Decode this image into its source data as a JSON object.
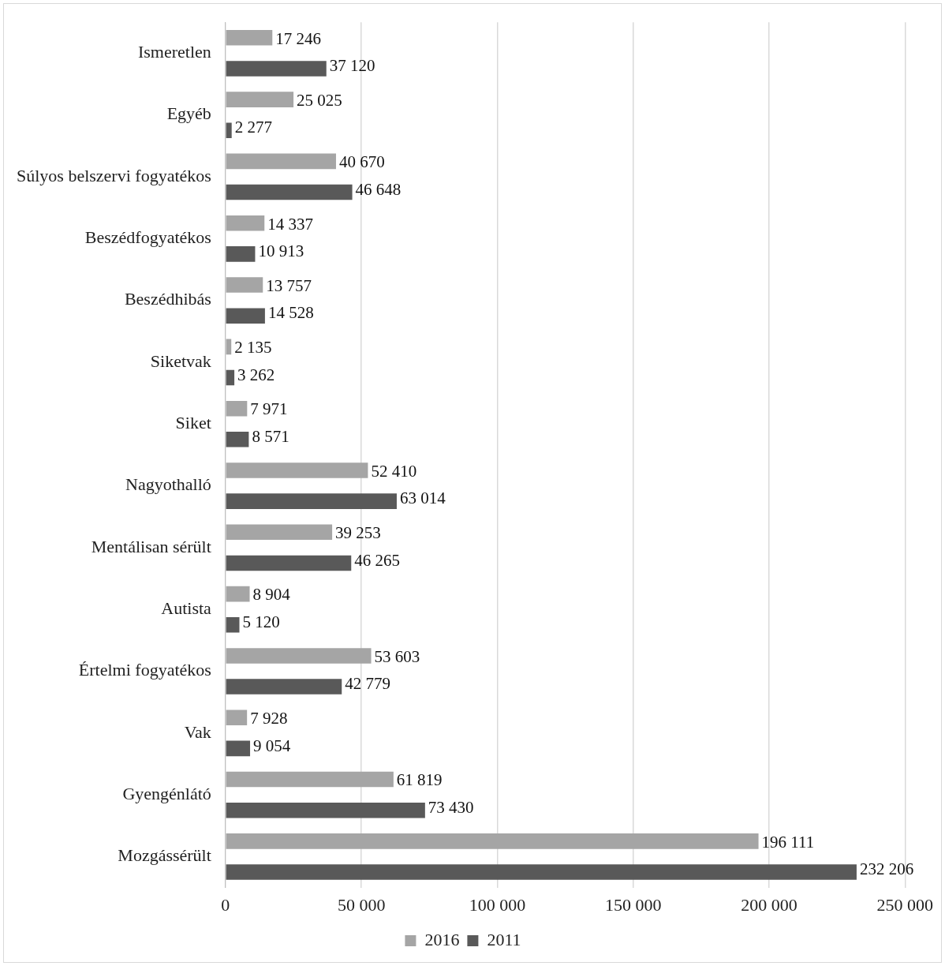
{
  "chart_data": {
    "type": "bar",
    "orientation": "horizontal",
    "categories": [
      "Ismeretlen",
      "Egyéb",
      "Súlyos belszervi fogyatékos",
      "Beszédfogyatékos",
      "Beszédhibás",
      "Siketvak",
      "Siket",
      "Nagyothalló",
      "Mentálisan sérült",
      "Autista",
      "Értelmi fogyatékos",
      "Vak",
      "Gyengénlátó",
      "Mozgássérült"
    ],
    "series": [
      {
        "name": "2016",
        "color": "#a5a5a5",
        "values": [
          17246,
          25025,
          40670,
          14337,
          13757,
          2135,
          7971,
          52410,
          39253,
          8904,
          53603,
          7928,
          61819,
          196111
        ],
        "value_labels": [
          "17 246",
          "25 025",
          "40 670",
          "14 337",
          "13 757",
          "2 135",
          "7 971",
          "52 410",
          "39 253",
          "8 904",
          "53 603",
          "7 928",
          "61 819",
          "196 111"
        ]
      },
      {
        "name": "2011",
        "color": "#595959",
        "values": [
          37120,
          2277,
          46648,
          10913,
          14528,
          3262,
          8571,
          63014,
          46265,
          5120,
          42779,
          9054,
          73430,
          232206
        ],
        "value_labels": [
          "37 120",
          "2 277",
          "46 648",
          "10 913",
          "14 528",
          "3 262",
          "8 571",
          "63 014",
          "46 265",
          "5 120",
          "42 779",
          "9 054",
          "73 430",
          "232 206"
        ]
      }
    ],
    "xlim": [
      0,
      250000
    ],
    "xticks": [
      0,
      {
        "value": 50000,
        "label": "50 000"
      },
      {
        "value": 100000,
        "label": "100 000"
      },
      {
        "value": 150000,
        "label": "150 000"
      },
      {
        "value": 200000,
        "label": "200 000"
      },
      {
        "value": 250000,
        "label": "250 000"
      }
    ],
    "grid": "x",
    "legend": "bottom"
  }
}
